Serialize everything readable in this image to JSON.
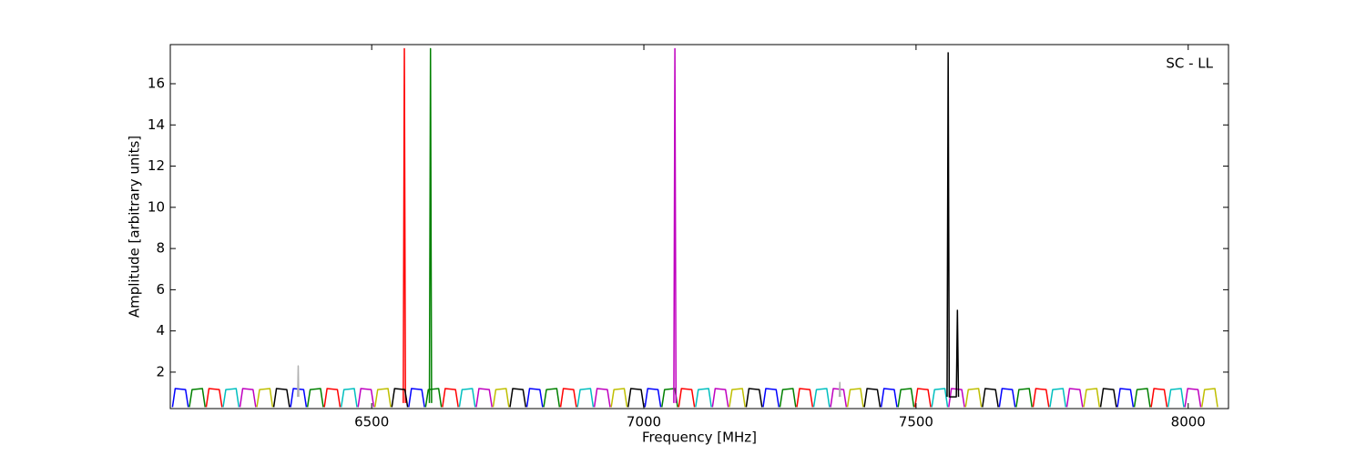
{
  "chart_data": {
    "type": "line",
    "annotation": "SC - LL",
    "xlabel": "Frequency [MHz]",
    "ylabel": "Amplitude [arbitrary units]",
    "xlim": [
      6130,
      8074
    ],
    "ylim": [
      0.23,
      17.9
    ],
    "xticks": [
      6500,
      7000,
      7500,
      8000
    ],
    "yticks": [
      2,
      4,
      6,
      8,
      10,
      12,
      14,
      16
    ],
    "series": [
      {
        "color": "#0000ff",
        "x": [
          6134,
          6139,
          6158,
          6163,
          null,
          6351,
          6356,
          6375,
          6380,
          null,
          6568,
          6573,
          6592,
          6597,
          null,
          6785,
          6790,
          6809,
          6814,
          null,
          7002,
          7007,
          7026,
          7031,
          null,
          7219,
          7224,
          7243,
          7248,
          null,
          7436,
          7441,
          7460,
          7465,
          null,
          7653,
          7658,
          7677,
          7682,
          null,
          7870,
          7875,
          7894,
          7899
        ],
        "values": [
          0.3,
          1.2,
          1.15,
          0.3,
          null,
          0.3,
          1.2,
          1.15,
          0.3,
          null,
          0.3,
          1.2,
          1.15,
          0.3,
          null,
          0.3,
          1.2,
          1.15,
          0.3,
          null,
          0.3,
          1.2,
          1.15,
          0.3,
          null,
          0.3,
          1.2,
          1.15,
          0.3,
          null,
          0.3,
          1.2,
          1.15,
          0.3,
          null,
          0.3,
          1.2,
          1.15,
          0.3,
          null,
          0.3,
          1.2,
          1.15,
          0.3
        ]
      },
      {
        "color": "#008000",
        "x": [
          6165,
          6170,
          6189,
          6194,
          null,
          6382,
          6387,
          6406,
          6411,
          null,
          6599,
          6604,
          6623,
          6628,
          null,
          6816,
          6821,
          6840,
          6845,
          null,
          7033,
          7038,
          7057,
          7062,
          null,
          7250,
          7255,
          7274,
          7279,
          null,
          7467,
          7472,
          7491,
          7496,
          null,
          7684,
          7689,
          7708,
          7713,
          null,
          7901,
          7906,
          7925,
          7930,
          null,
          6606,
          6608,
          6610
        ],
        "values": [
          0.3,
          1.15,
          1.2,
          0.3,
          null,
          0.3,
          1.15,
          1.2,
          0.3,
          null,
          0.3,
          1.15,
          1.2,
          0.3,
          null,
          0.3,
          1.15,
          1.2,
          0.3,
          null,
          0.3,
          1.15,
          1.2,
          0.3,
          null,
          0.3,
          1.15,
          1.2,
          0.3,
          null,
          0.3,
          1.15,
          1.2,
          0.3,
          null,
          0.3,
          1.15,
          1.2,
          0.3,
          null,
          0.3,
          1.15,
          1.2,
          0.3,
          null,
          0.5,
          17.7,
          0.5
        ]
      },
      {
        "color": "#ff0000",
        "x": [
          6196,
          6201,
          6220,
          6225,
          null,
          6413,
          6418,
          6437,
          6442,
          null,
          6630,
          6635,
          6654,
          6659,
          null,
          6847,
          6852,
          6871,
          6876,
          null,
          7064,
          7069,
          7088,
          7093,
          null,
          7281,
          7286,
          7305,
          7310,
          null,
          7498,
          7503,
          7522,
          7527,
          null,
          7715,
          7720,
          7739,
          7744,
          null,
          7932,
          7937,
          7956,
          7961,
          null,
          6558,
          6560,
          6562
        ],
        "values": [
          0.3,
          1.2,
          1.15,
          0.3,
          null,
          0.3,
          1.2,
          1.15,
          0.3,
          null,
          0.3,
          1.2,
          1.15,
          0.3,
          null,
          0.3,
          1.2,
          1.15,
          0.3,
          null,
          0.3,
          1.2,
          1.15,
          0.3,
          null,
          0.3,
          1.2,
          1.15,
          0.3,
          null,
          0.3,
          1.2,
          1.15,
          0.3,
          null,
          0.3,
          1.2,
          1.15,
          0.3,
          null,
          0.3,
          1.2,
          1.15,
          0.3,
          null,
          0.5,
          17.7,
          0.5
        ]
      },
      {
        "color": "#00bfbf",
        "x": [
          6227,
          6232,
          6251,
          6256,
          null,
          6444,
          6449,
          6468,
          6473,
          null,
          6661,
          6666,
          6685,
          6690,
          null,
          6878,
          6883,
          6902,
          6907,
          null,
          7095,
          7100,
          7119,
          7124,
          null,
          7312,
          7317,
          7336,
          7341,
          null,
          7529,
          7534,
          7553,
          7558,
          null,
          7746,
          7751,
          7770,
          7775,
          null,
          7963,
          7968,
          7987,
          7992
        ],
        "values": [
          0.3,
          1.15,
          1.2,
          0.3,
          null,
          0.3,
          1.15,
          1.2,
          0.3,
          null,
          0.3,
          1.15,
          1.2,
          0.3,
          null,
          0.3,
          1.15,
          1.2,
          0.3,
          null,
          0.3,
          1.15,
          1.2,
          0.3,
          null,
          0.3,
          1.15,
          1.2,
          0.3,
          null,
          0.3,
          1.15,
          1.2,
          0.3,
          null,
          0.3,
          1.15,
          1.2,
          0.3,
          null,
          0.3,
          1.15,
          1.2,
          0.3
        ]
      },
      {
        "color": "#bf00bf",
        "x": [
          6258,
          6263,
          6282,
          6287,
          null,
          6475,
          6480,
          6499,
          6504,
          null,
          6692,
          6697,
          6716,
          6721,
          null,
          6909,
          6914,
          6933,
          6938,
          null,
          7126,
          7131,
          7150,
          7155,
          null,
          7343,
          7348,
          7367,
          7372,
          null,
          7560,
          7565,
          7584,
          7589,
          null,
          7777,
          7782,
          7801,
          7806,
          null,
          7994,
          7999,
          8018,
          8023,
          null,
          7055,
          7057,
          7059
        ],
        "values": [
          0.3,
          1.2,
          1.15,
          0.3,
          null,
          0.3,
          1.2,
          1.15,
          0.3,
          null,
          0.3,
          1.2,
          1.15,
          0.3,
          null,
          0.3,
          1.2,
          1.15,
          0.3,
          null,
          0.3,
          1.2,
          1.15,
          0.3,
          null,
          0.3,
          1.2,
          1.15,
          0.3,
          null,
          0.3,
          1.2,
          1.15,
          0.3,
          null,
          0.3,
          1.2,
          1.15,
          0.3,
          null,
          0.3,
          1.2,
          1.15,
          0.3,
          null,
          0.5,
          17.7,
          0.5
        ]
      },
      {
        "color": "#bfbf00",
        "x": [
          6289,
          6294,
          6313,
          6318,
          null,
          6506,
          6511,
          6530,
          6535,
          null,
          6723,
          6728,
          6747,
          6752,
          null,
          6940,
          6945,
          6964,
          6969,
          null,
          7157,
          7162,
          7181,
          7186,
          null,
          7374,
          7379,
          7398,
          7403,
          null,
          7591,
          7596,
          7615,
          7620,
          null,
          7808,
          7813,
          7832,
          7837,
          null,
          8025,
          8030,
          8049,
          8054
        ],
        "values": [
          0.3,
          1.15,
          1.2,
          0.3,
          null,
          0.3,
          1.15,
          1.2,
          0.3,
          null,
          0.3,
          1.15,
          1.2,
          0.3,
          null,
          0.3,
          1.15,
          1.2,
          0.3,
          null,
          0.3,
          1.15,
          1.2,
          0.3,
          null,
          0.3,
          1.15,
          1.2,
          0.3,
          null,
          0.3,
          1.15,
          1.2,
          0.3,
          null,
          0.3,
          1.15,
          1.2,
          0.3,
          null,
          0.3,
          1.15,
          1.2,
          0.3
        ]
      },
      {
        "color": "#000000",
        "x": [
          6320,
          6325,
          6344,
          6349,
          null,
          6537,
          6542,
          6561,
          6566,
          null,
          6754,
          6759,
          6778,
          6783,
          null,
          6971,
          6976,
          6995,
          7000,
          null,
          7188,
          7193,
          7212,
          7217,
          null,
          7405,
          7410,
          7429,
          7434,
          null,
          7622,
          7627,
          7646,
          7651,
          null,
          7839,
          7844,
          7863,
          7868,
          null,
          7557,
          7559,
          7561,
          7574,
          7576,
          7578
        ],
        "values": [
          0.3,
          1.2,
          1.15,
          0.3,
          null,
          0.3,
          1.2,
          1.15,
          0.3,
          null,
          0.3,
          1.2,
          1.15,
          0.3,
          null,
          0.3,
          1.2,
          1.15,
          0.3,
          null,
          0.3,
          1.2,
          1.15,
          0.3,
          null,
          0.3,
          1.2,
          1.15,
          0.3,
          null,
          0.3,
          1.2,
          1.15,
          0.3,
          null,
          0.3,
          1.2,
          1.15,
          0.3,
          null,
          0.8,
          17.5,
          0.8,
          0.8,
          5.0,
          0.8
        ]
      },
      {
        "color": "#b0b0b0",
        "x": [
          6364,
          6365,
          6366,
          null,
          7359,
          7360,
          7361
        ],
        "values": [
          0.8,
          2.3,
          0.8,
          null,
          0.8,
          1.5,
          0.8
        ]
      }
    ]
  }
}
